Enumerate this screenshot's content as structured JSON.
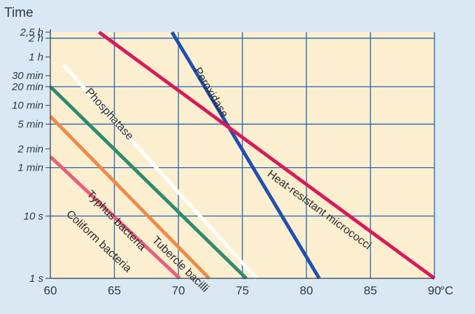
{
  "chart_data": {
    "type": "line",
    "title": "",
    "ylabel": "Time",
    "xlabel": "",
    "x_unit": "°C",
    "xlim": [
      60,
      90
    ],
    "y_scale": "log",
    "ylim_seconds": [
      1,
      9000
    ],
    "grid": true,
    "background": "#fcefd0",
    "grid_color": "#2f6db5",
    "x_ticks": [
      60,
      65,
      70,
      75,
      80,
      85,
      90
    ],
    "x_tick_labels": [
      "60",
      "65",
      "70",
      "75",
      "80",
      "85",
      "90"
    ],
    "y_ticks": [
      {
        "label": "2,5 h",
        "seconds": 9000,
        "grid": false
      },
      {
        "label": "2 h",
        "seconds": 7200,
        "grid": true
      },
      {
        "label": "1 h",
        "seconds": 3600,
        "grid": false
      },
      {
        "label": "30 min",
        "seconds": 1800,
        "grid": false
      },
      {
        "label": "20 min",
        "seconds": 1200,
        "grid": true
      },
      {
        "label": "10 min",
        "seconds": 600,
        "grid": false
      },
      {
        "label": "5 min",
        "seconds": 300,
        "grid": true
      },
      {
        "label": "2 min",
        "seconds": 120,
        "grid": false
      },
      {
        "label": "1 min",
        "seconds": 60,
        "grid": true
      },
      {
        "label": "10 s",
        "seconds": 10,
        "grid": true
      },
      {
        "label": "1 s",
        "seconds": 1,
        "grid": true
      }
    ],
    "series": [
      {
        "name": "Coliform bacteria",
        "color": "#e8607a",
        "points": [
          [
            60,
            90
          ],
          [
            70.1,
            1
          ]
        ],
        "label_at": [
          61.2,
          10.5
        ]
      },
      {
        "name": "Typhus bacteria",
        "color": "#ef8a4a",
        "points": [
          [
            60,
            400
          ],
          [
            72.4,
            1
          ]
        ],
        "label_at": [
          62.8,
          22
        ]
      },
      {
        "name": "Tubercle bacilli",
        "color": "#2e8b70",
        "points": [
          [
            60,
            1200
          ],
          [
            75.3,
            1
          ]
        ],
        "label_at": [
          67.9,
          4
        ]
      },
      {
        "name": "Phosphatase",
        "color": "#ffffff",
        "points": [
          [
            61,
            2700
          ],
          [
            76.1,
            1
          ]
        ],
        "label_at": [
          62.7,
          980
        ]
      },
      {
        "name": "Peroxidase",
        "color": "#1f4fb0",
        "points": [
          [
            69.5,
            9000
          ],
          [
            81,
            1
          ]
        ],
        "label_at": [
          71.2,
          2200
        ]
      },
      {
        "name": "Heat-resistant micrococci",
        "color": "#d81a5a",
        "points": [
          [
            63.8,
            9000
          ],
          [
            90,
            1
          ]
        ],
        "label_at": [
          76.9,
          45
        ]
      }
    ]
  }
}
